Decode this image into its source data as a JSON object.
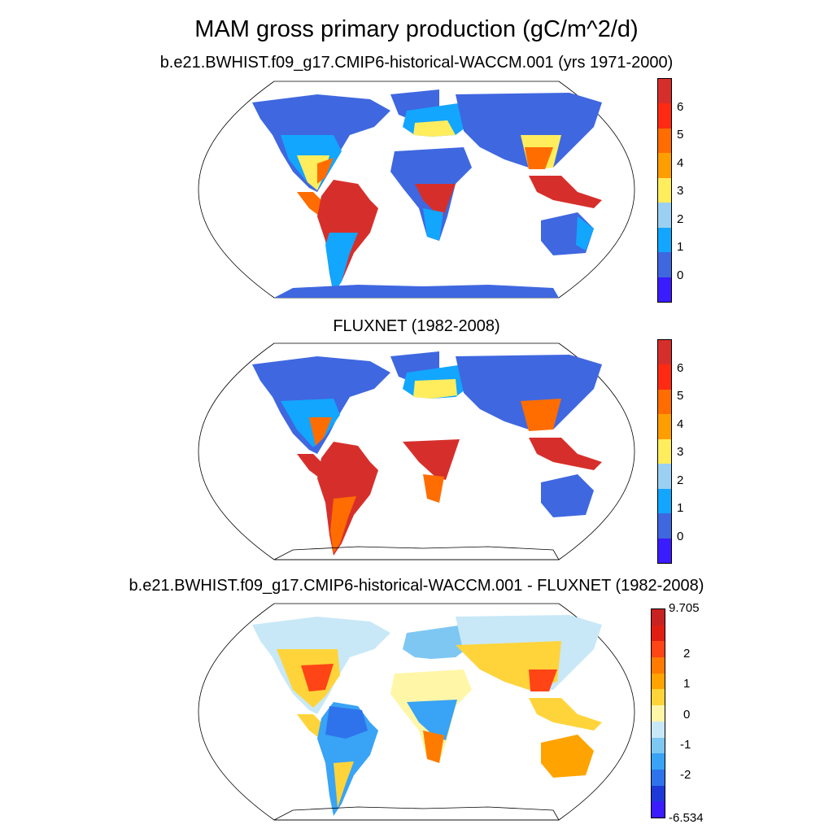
{
  "main_title": "MAM gross primary production (gC/m^2/d)",
  "panels": [
    {
      "id": "model",
      "title": "b.e21.BWHIST.f09_g17.CMIP6-historical-WACCM.001 (yrs 1971-2000)",
      "colorbar": {
        "colors": [
          "#d62f2b",
          "#ff2a12",
          "#ff6d00",
          "#ff9e00",
          "#ffed5e",
          "#9bd0f2",
          "#12a6ff",
          "#3f67e0",
          "#3a1cff"
        ],
        "labels": [
          "6",
          "5",
          "4",
          "3",
          "2",
          "1",
          "0"
        ]
      }
    },
    {
      "id": "obs",
      "title": "FLUXNET (1982-2008)",
      "colorbar": {
        "colors": [
          "#d62f2b",
          "#ff2a12",
          "#ff6d00",
          "#ff9e00",
          "#ffed5e",
          "#9bd0f2",
          "#12a6ff",
          "#3f67e0",
          "#3a1cff"
        ],
        "labels": [
          "6",
          "5",
          "4",
          "3",
          "2",
          "1",
          "0"
        ]
      }
    },
    {
      "id": "diff",
      "title": "b.e21.BWHIST.f09_g17.CMIP6-historical-WACCM.001 - FLUXNET (1982-2008)",
      "colorbar": {
        "colors": [
          "#c92222",
          "#e01f12",
          "#ff4416",
          "#ff7b00",
          "#ffa300",
          "#ffd43a",
          "#fff6a8",
          "#c8e8f7",
          "#7ec7f3",
          "#39a3f5",
          "#2e73eb",
          "#1d3ad8",
          "#3a1cff"
        ],
        "labels": [
          "9.705",
          "2",
          "1",
          "0",
          "-1",
          "-2",
          "-6.534"
        ]
      }
    }
  ],
  "legend_colors": {
    "ocean": "#ffffff",
    "coastline": "#000000"
  }
}
